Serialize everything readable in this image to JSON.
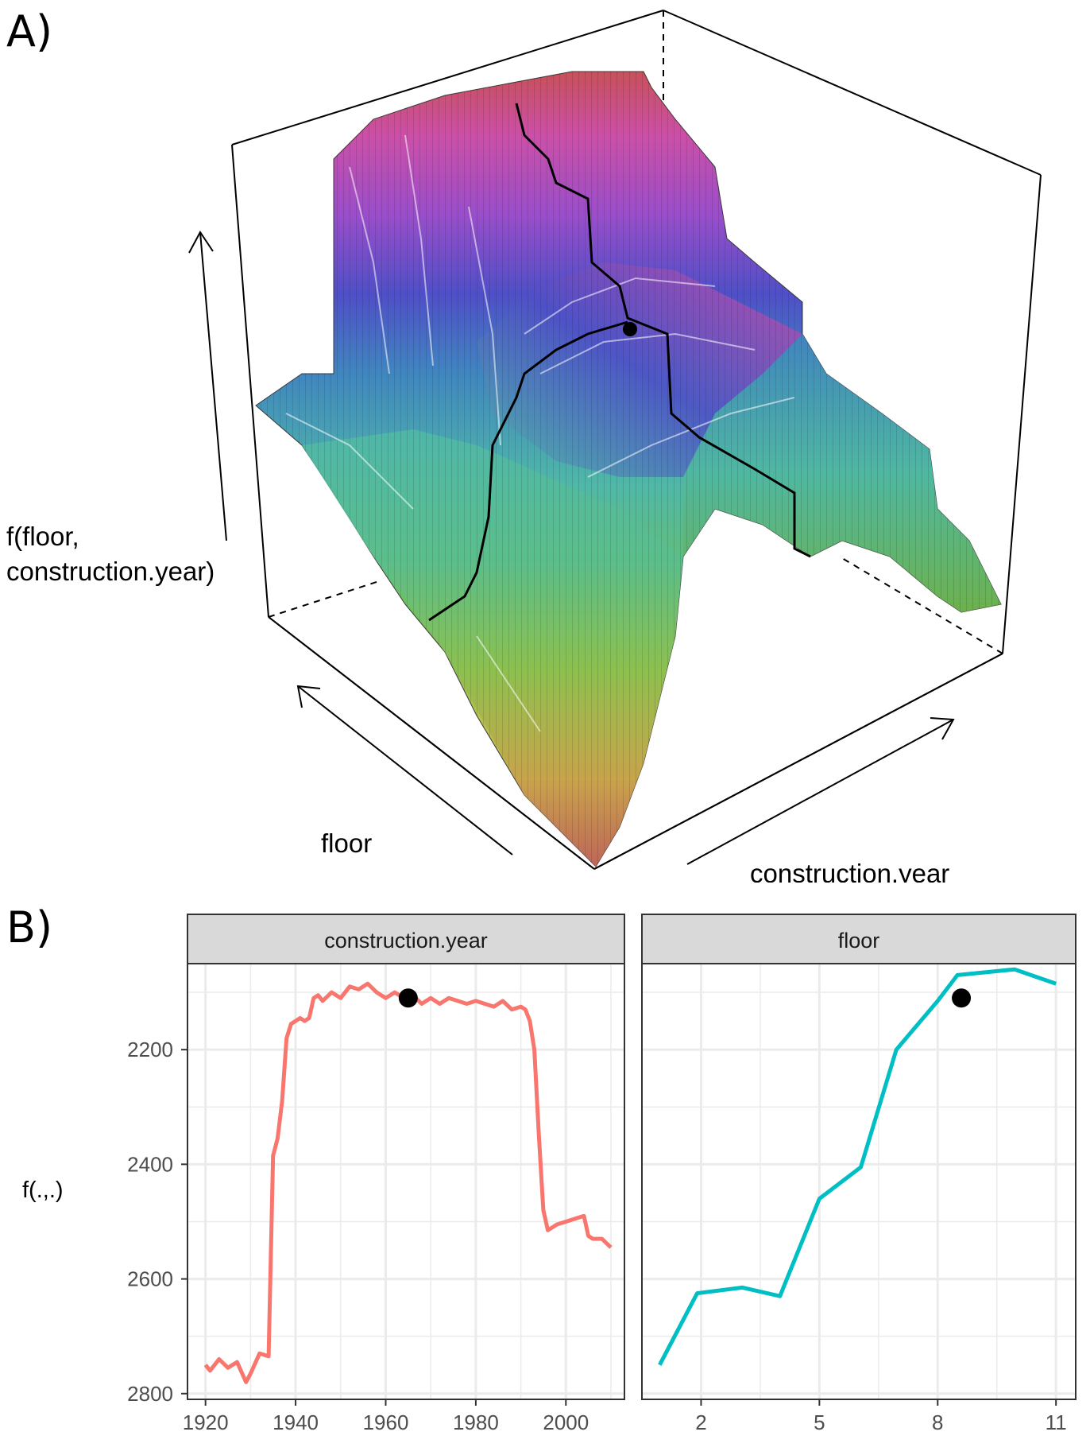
{
  "panel_a": {
    "label": "A)",
    "z_label_line1": "f(floor,",
    "z_label_line2": "construction.year)",
    "x_label": "floor",
    "y_label": "construction.year"
  },
  "panel_b": {
    "label": "B)",
    "y_label": "f(.,.)"
  },
  "colors": {
    "construction_year_line": "#F8766D",
    "floor_line": "#00BFC4",
    "strip_fill": "#D9D9D9",
    "grid": "#EBEBEB",
    "point": "#000000"
  },
  "chart_data": [
    {
      "type": "surface",
      "title": "",
      "x_label": "floor",
      "y_label": "construction.year",
      "z_label": "f(floor, construction.year)",
      "highlighted_point": {
        "floor": 8.5,
        "construction.year": 1965,
        "value": 2110
      },
      "colormap": "rainbow (yellow-green-cyan-blue-purple-magenta-red) by height"
    },
    {
      "type": "line",
      "facet": "construction.year",
      "x": [
        1920,
        1921,
        1923,
        1925,
        1927,
        1929,
        1930,
        1932,
        1934,
        1935,
        1936,
        1937,
        1938,
        1939,
        1940,
        1941,
        1942,
        1943,
        1944,
        1945,
        1946,
        1948,
        1950,
        1952,
        1954,
        1956,
        1958,
        1960,
        1962,
        1964,
        1966,
        1968,
        1970,
        1972,
        1974,
        1976,
        1978,
        1980,
        1982,
        1984,
        1986,
        1988,
        1990,
        1991,
        1992,
        1993,
        1994,
        1995,
        1996,
        1998,
        2000,
        2002,
        2004,
        2005,
        2006,
        2008,
        2010
      ],
      "y": [
        2750,
        2760,
        2740,
        2755,
        2745,
        2780,
        2765,
        2730,
        2735,
        2385,
        2355,
        2290,
        2180,
        2155,
        2150,
        2145,
        2150,
        2145,
        2110,
        2105,
        2115,
        2100,
        2110,
        2090,
        2095,
        2085,
        2100,
        2110,
        2100,
        2110,
        2105,
        2120,
        2110,
        2120,
        2110,
        2115,
        2120,
        2115,
        2120,
        2125,
        2115,
        2130,
        2125,
        2130,
        2150,
        2200,
        2350,
        2480,
        2515,
        2505,
        2500,
        2495,
        2490,
        2525,
        2530,
        2530,
        2545
      ],
      "ylim": [
        2810,
        2050
      ],
      "y_reversed": true,
      "xlim": [
        1916,
        2013
      ],
      "x_ticks": [
        1920,
        1940,
        1960,
        1980,
        2000
      ],
      "y_ticks": [
        2200,
        2400,
        2600,
        2800
      ],
      "grid": true,
      "highlighted_point": {
        "x": 1965,
        "y": 2110
      }
    },
    {
      "type": "line",
      "facet": "floor",
      "x": [
        1,
        2,
        3,
        4,
        5,
        6,
        7,
        8,
        9,
        10,
        11
      ],
      "y": [
        2750,
        2625,
        2615,
        2630,
        2460,
        2405,
        2200,
        2115,
        2070,
        2060,
        2085
      ],
      "x_exact": [
        0.95,
        1.9,
        3.05,
        4.0,
        5.0,
        6.05,
        6.95,
        8.0,
        8.5,
        9.95,
        11.0
      ],
      "ylim": [
        2810,
        2050
      ],
      "y_reversed": true,
      "xlim": [
        0.5,
        11.5
      ],
      "x_ticks": [
        2,
        5,
        8,
        11
      ],
      "y_ticks": [
        2200,
        2400,
        2600,
        2800
      ],
      "grid": true,
      "highlighted_point": {
        "x": 8.6,
        "y": 2110
      }
    }
  ],
  "facets": [
    {
      "strip": "construction.year",
      "x_tick_labels": [
        "1920",
        "1940",
        "1960",
        "1980",
        "2000"
      ]
    },
    {
      "strip": "floor",
      "x_tick_labels": [
        "2",
        "5",
        "8",
        "11"
      ]
    }
  ],
  "y_tick_labels": [
    "2200",
    "2400",
    "2600",
    "2800"
  ]
}
